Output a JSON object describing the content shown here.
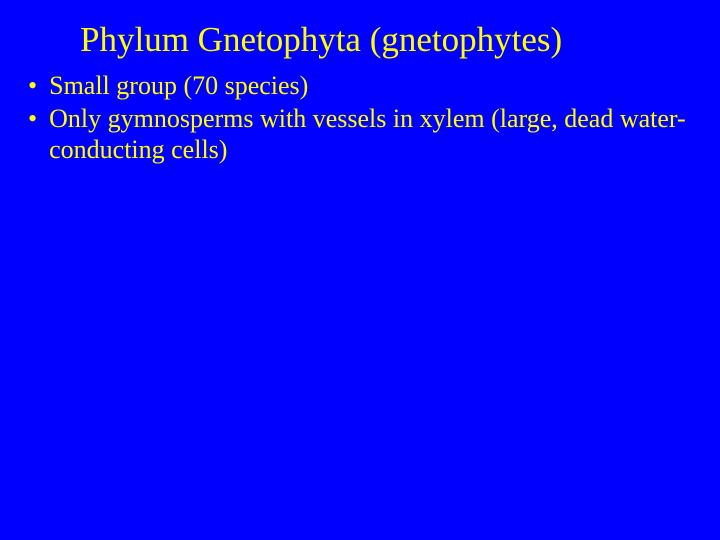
{
  "slide": {
    "title": "Phylum Gnetophyta (gnetophytes)",
    "bullets": [
      "Small group (70 species)",
      "Only gymnosperms with vessels in xylem (large, dead water-conducting cells)"
    ],
    "colors": {
      "background": "#0000ff",
      "text": "#ffff00"
    },
    "typography": {
      "font_family": "Times New Roman",
      "title_fontsize": 35,
      "bullet_fontsize": 26
    }
  }
}
